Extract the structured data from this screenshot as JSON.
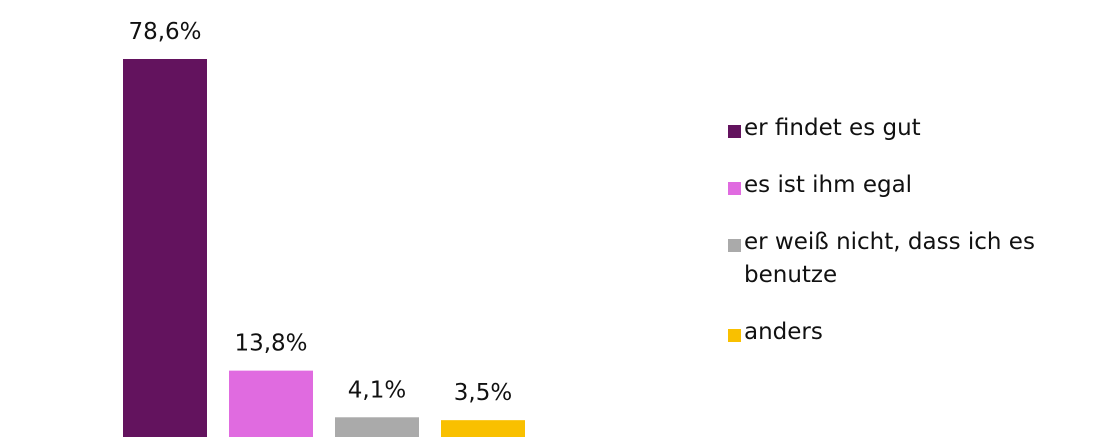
{
  "chart_data": {
    "type": "bar",
    "categories": [
      "er findet es gut",
      "es ist ihm egal",
      "er weiß nicht, dass ich es benutze",
      "anders"
    ],
    "values": [
      78.6,
      13.8,
      4.1,
      3.5
    ],
    "value_labels": [
      "78,6%",
      "13,8%",
      "4,1%",
      "3,5%"
    ],
    "colors": [
      "#63135e",
      "#e06be0",
      "#aaaaaa",
      "#f9c000"
    ]
  }
}
